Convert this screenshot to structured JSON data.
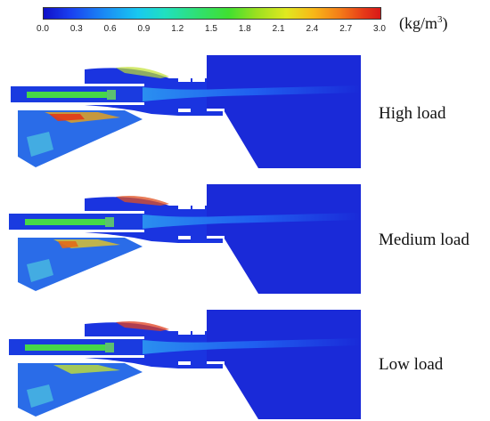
{
  "colorbar": {
    "ticks": [
      "0.0",
      "0.3",
      "0.6",
      "0.9",
      "1.2",
      "1.5",
      "1.8",
      "2.1",
      "2.4",
      "2.7",
      "3.0"
    ],
    "unit_prefix": "(kg/m",
    "unit_sup": "3",
    "unit_suffix": ")"
  },
  "panels": [
    {
      "label": "High load"
    },
    {
      "label": "Medium load"
    },
    {
      "label": "Low load"
    }
  ]
}
